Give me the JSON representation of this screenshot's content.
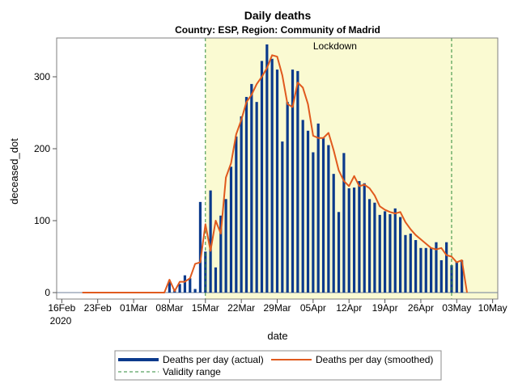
{
  "chart_data": {
    "type": "bar",
    "title": "Daily deaths",
    "subtitle": "Country: ESP, Region: Community of Madrid",
    "xlabel": "date",
    "ylabel": "deceased_dot",
    "x_ticks": [
      "16Feb",
      "23Feb",
      "01Mar",
      "08Mar",
      "15Mar",
      "22Mar",
      "29Mar",
      "05Apr",
      "12Apr",
      "19Apr",
      "26Apr",
      "03May",
      "10May"
    ],
    "x_tick_offsets_days": [
      0,
      7,
      14,
      21,
      28,
      35,
      42,
      49,
      56,
      63,
      70,
      77,
      84
    ],
    "x_year_label": "2020",
    "y_ticks": [
      0,
      100,
      200,
      300
    ],
    "ylim": [
      0,
      350
    ],
    "xlim_days": [
      -1,
      85
    ],
    "x_day0": "2020-02-16",
    "lockdown": {
      "label": "Lockdown",
      "start_day": 28,
      "end_day": 76,
      "fill": "#fafad2"
    },
    "series": [
      {
        "name": "Deaths per day (actual)",
        "type": "bar",
        "color": "#0b3a8c",
        "start_day": 21,
        "values": [
          17,
          5,
          12,
          24,
          20,
          5,
          126,
          57,
          142,
          35,
          107,
          130,
          175,
          217,
          245,
          272,
          290,
          265,
          322,
          345,
          325,
          310,
          210,
          265,
          310,
          308,
          240,
          225,
          195,
          235,
          215,
          205,
          165,
          112,
          194,
          145,
          146,
          155,
          152,
          130,
          125,
          108,
          113,
          109,
          117,
          105,
          80,
          82,
          73,
          62,
          62,
          62,
          70,
          45,
          70,
          38,
          43,
          45
        ]
      },
      {
        "name": "Deaths per day (smoothed)",
        "type": "line",
        "color": "#e05a1e",
        "points": [
          [
            4,
            0
          ],
          [
            20,
            0
          ],
          [
            21,
            18
          ],
          [
            22,
            2
          ],
          [
            23,
            15
          ],
          [
            24,
            15
          ],
          [
            25,
            20
          ],
          [
            26,
            40
          ],
          [
            27,
            42
          ],
          [
            28,
            95
          ],
          [
            29,
            58
          ],
          [
            30,
            100
          ],
          [
            31,
            82
          ],
          [
            32,
            160
          ],
          [
            33,
            180
          ],
          [
            34,
            220
          ],
          [
            35,
            240
          ],
          [
            36,
            265
          ],
          [
            37,
            275
          ],
          [
            38,
            290
          ],
          [
            39,
            300
          ],
          [
            40,
            312
          ],
          [
            41,
            330
          ],
          [
            42,
            328
          ],
          [
            43,
            302
          ],
          [
            44,
            262
          ],
          [
            45,
            258
          ],
          [
            46,
            292
          ],
          [
            47,
            285
          ],
          [
            48,
            262
          ],
          [
            49,
            218
          ],
          [
            50,
            215
          ],
          [
            51,
            215
          ],
          [
            52,
            222
          ],
          [
            53,
            198
          ],
          [
            54,
            170
          ],
          [
            55,
            155
          ],
          [
            56,
            148
          ],
          [
            57,
            162
          ],
          [
            58,
            148
          ],
          [
            59,
            150
          ],
          [
            60,
            145
          ],
          [
            61,
            135
          ],
          [
            62,
            120
          ],
          [
            63,
            115
          ],
          [
            64,
            112
          ],
          [
            65,
            110
          ],
          [
            66,
            112
          ],
          [
            67,
            98
          ],
          [
            68,
            88
          ],
          [
            69,
            80
          ],
          [
            70,
            74
          ],
          [
            71,
            68
          ],
          [
            72,
            62
          ],
          [
            73,
            60
          ],
          [
            74,
            62
          ],
          [
            75,
            52
          ],
          [
            76,
            50
          ],
          [
            77,
            42
          ],
          [
            78,
            45
          ],
          [
            79,
            0
          ]
        ]
      },
      {
        "name": "Validity range",
        "type": "reference-line",
        "color": "#2e8b3a",
        "days": [
          28,
          76
        ]
      }
    ],
    "legend_position": "bottom"
  }
}
